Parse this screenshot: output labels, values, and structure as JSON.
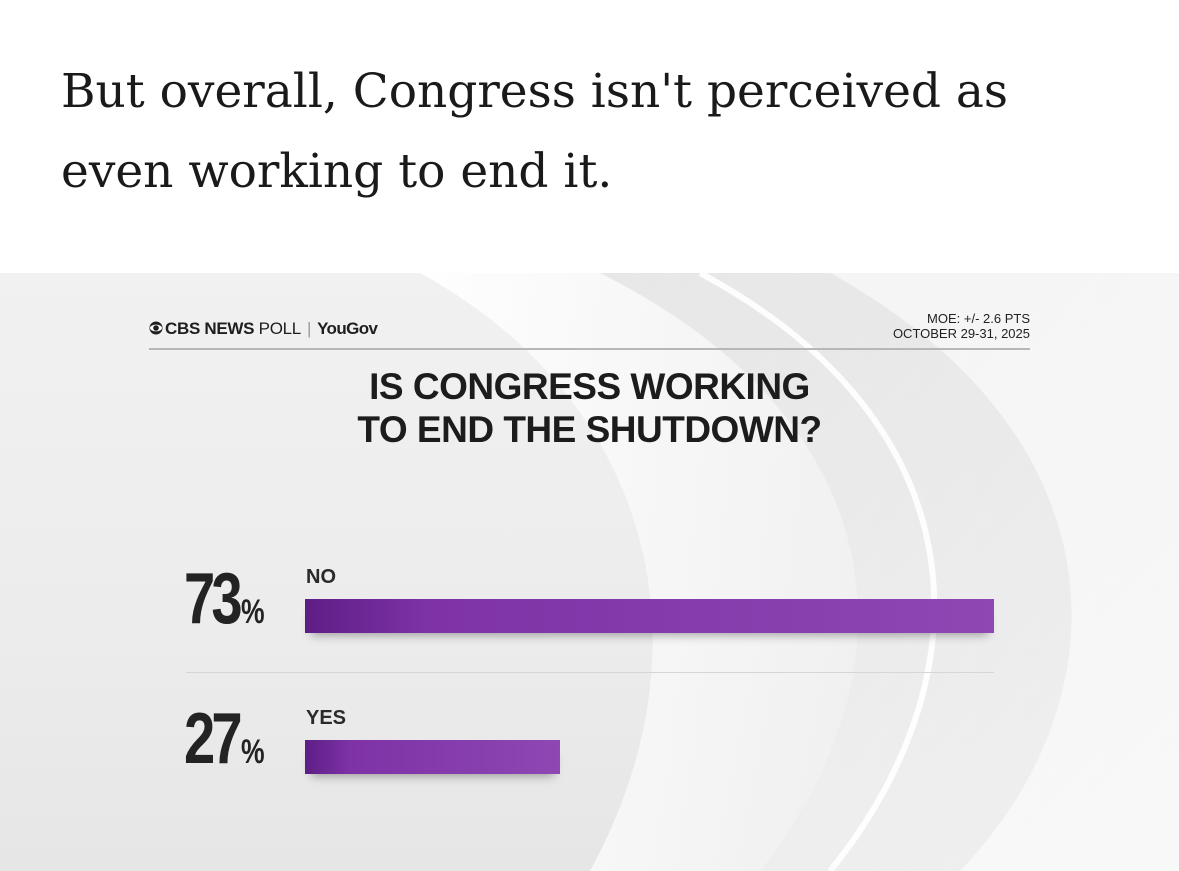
{
  "article": {
    "text": "But overall, Congress isn't perceived as even working to end it."
  },
  "graphic": {
    "brand": {
      "cbs": "CBS NEWS",
      "poll": "POLL",
      "partner": "YouGov"
    },
    "meta": {
      "moe": "MOE: +/- 2.6 PTS",
      "dates": "OCTOBER 29-31, 2025"
    }
  },
  "chart_data": {
    "type": "bar",
    "orientation": "horizontal",
    "title": "IS CONGRESS WORKING TO END THE SHUTDOWN?",
    "title_lines": [
      "IS CONGRESS WORKING",
      "TO END THE SHUTDOWN?"
    ],
    "categories": [
      "NO",
      "YES"
    ],
    "values": [
      73,
      27
    ],
    "value_labels": [
      "73",
      "27"
    ],
    "unit": "%",
    "xlim": [
      0,
      73
    ],
    "bar_color": "#8e47b3",
    "grid": false,
    "legend": "none"
  }
}
